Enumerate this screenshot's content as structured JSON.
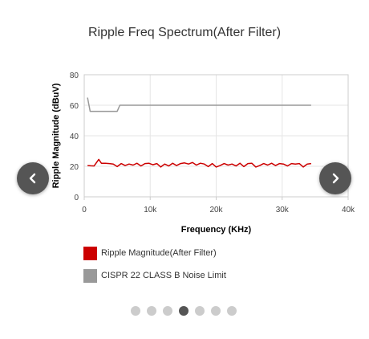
{
  "page_title": "Ripple Freq Spectrum(After Filter)",
  "colors": {
    "ripple": "#cc0000",
    "limit": "#999999",
    "nav_button": "#555555",
    "dot_inactive": "#cccccc",
    "dot_active": "#555555"
  },
  "icons": {
    "prev": "chevron-left-icon",
    "next": "chevron-right-icon"
  },
  "carousel": {
    "slide_count": 7,
    "active_index": 3
  },
  "chart_data": {
    "type": "line",
    "title": "Ripple Freq Spectrum(After Filter)",
    "xlabel": "Frequency (KHz)",
    "ylabel": "Ripple Magnitude (dBuV)",
    "xlim": [
      0,
      40000
    ],
    "ylim": [
      0,
      80
    ],
    "x_ticks": [
      0,
      10000,
      20000,
      30000,
      40000
    ],
    "x_tick_labels": [
      "0",
      "10k",
      "20k",
      "30k",
      "40k"
    ],
    "y_ticks": [
      0,
      20,
      40,
      60,
      80
    ],
    "y_tick_labels": [
      "0",
      "20",
      "40",
      "60",
      "80"
    ],
    "grid": true,
    "legend_position": "bottom-left",
    "series": [
      {
        "name": "Ripple Magnitude(After Filter)",
        "color": "#cc0000",
        "x": [
          500,
          1000,
          1500,
          2200,
          2600,
          3200,
          3800,
          4400,
          5000,
          5600,
          6200,
          6800,
          7400,
          8000,
          8600,
          9200,
          9800,
          10400,
          11000,
          11600,
          12200,
          12800,
          13400,
          14000,
          14600,
          15200,
          15800,
          16400,
          17000,
          17600,
          18200,
          18800,
          19400,
          20000,
          20600,
          21200,
          21800,
          22400,
          23000,
          23600,
          24200,
          24800,
          25400,
          26000,
          26600,
          27200,
          27800,
          28400,
          29000,
          29600,
          30200,
          30800,
          31400,
          32000,
          32600,
          33200,
          33800,
          34400
        ],
        "y": [
          20.5,
          20.3,
          20.2,
          24.5,
          22.0,
          22.0,
          21.8,
          21.5,
          19.8,
          21.8,
          20.5,
          21.5,
          20.8,
          22.0,
          20.2,
          21.8,
          22.0,
          21.0,
          21.8,
          19.5,
          21.5,
          20.2,
          22.0,
          20.5,
          21.8,
          22.2,
          21.5,
          22.5,
          20.8,
          22.0,
          21.5,
          19.8,
          21.8,
          19.5,
          20.5,
          21.8,
          20.8,
          21.5,
          20.2,
          22.0,
          19.8,
          21.8,
          22.0,
          19.5,
          20.5,
          21.8,
          20.8,
          22.0,
          20.5,
          21.8,
          21.5,
          20.2,
          21.8,
          21.5,
          21.8,
          19.5,
          21.5,
          21.8
        ]
      },
      {
        "name": "CISPR 22 CLASS B Noise Limit",
        "color": "#999999",
        "x": [
          500,
          900,
          5000,
          5400,
          34400
        ],
        "y": [
          65,
          56,
          56,
          60,
          60
        ]
      }
    ]
  }
}
